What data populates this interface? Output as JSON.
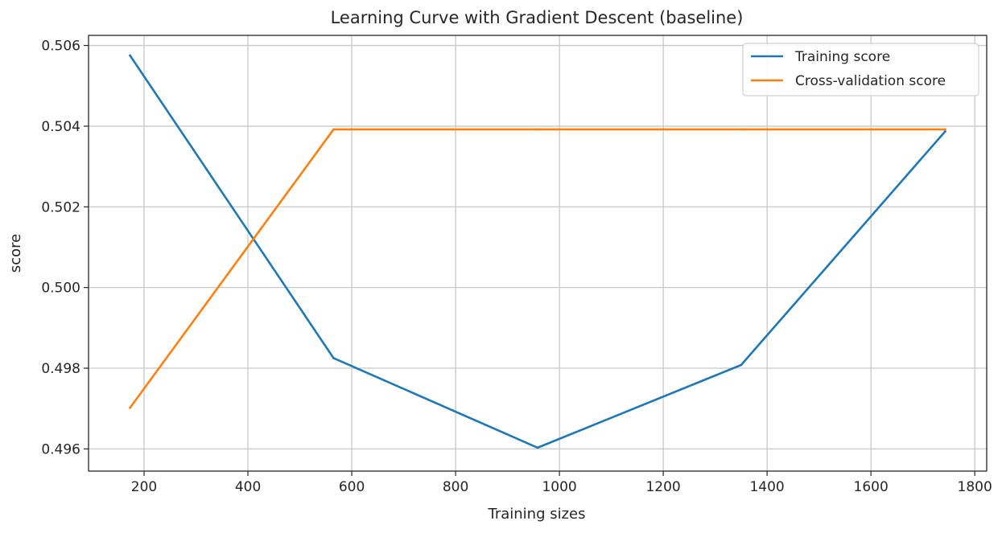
{
  "chart_data": {
    "type": "line",
    "title": "Learning Curve with Gradient Descent (baseline)",
    "xlabel": "Training sizes",
    "ylabel": "score",
    "x": [
      173,
      565,
      958,
      1350,
      1743
    ],
    "xlim": [
      93,
      1823
    ],
    "ylim": [
      0.49545,
      0.50625
    ],
    "xticks": [
      200,
      400,
      600,
      800,
      1000,
      1200,
      1400,
      1600,
      1800
    ],
    "yticks": [
      0.496,
      0.498,
      0.5,
      0.502,
      0.504,
      0.506
    ],
    "xtick_labels": [
      "200",
      "400",
      "600",
      "800",
      "1000",
      "1200",
      "1400",
      "1600",
      "1800"
    ],
    "ytick_labels": [
      "0.496",
      "0.498",
      "0.500",
      "0.502",
      "0.504",
      "0.506"
    ],
    "grid": true,
    "legend_position": "top-right",
    "series": [
      {
        "name": "Training score",
        "color": "#1f77b4",
        "values": [
          0.50575,
          0.49825,
          0.49603,
          0.49808,
          0.50387
        ]
      },
      {
        "name": "Cross-validation score",
        "color": "#ff7f0e",
        "values": [
          0.49702,
          0.50392,
          0.50392,
          0.50392,
          0.50392
        ]
      }
    ]
  }
}
